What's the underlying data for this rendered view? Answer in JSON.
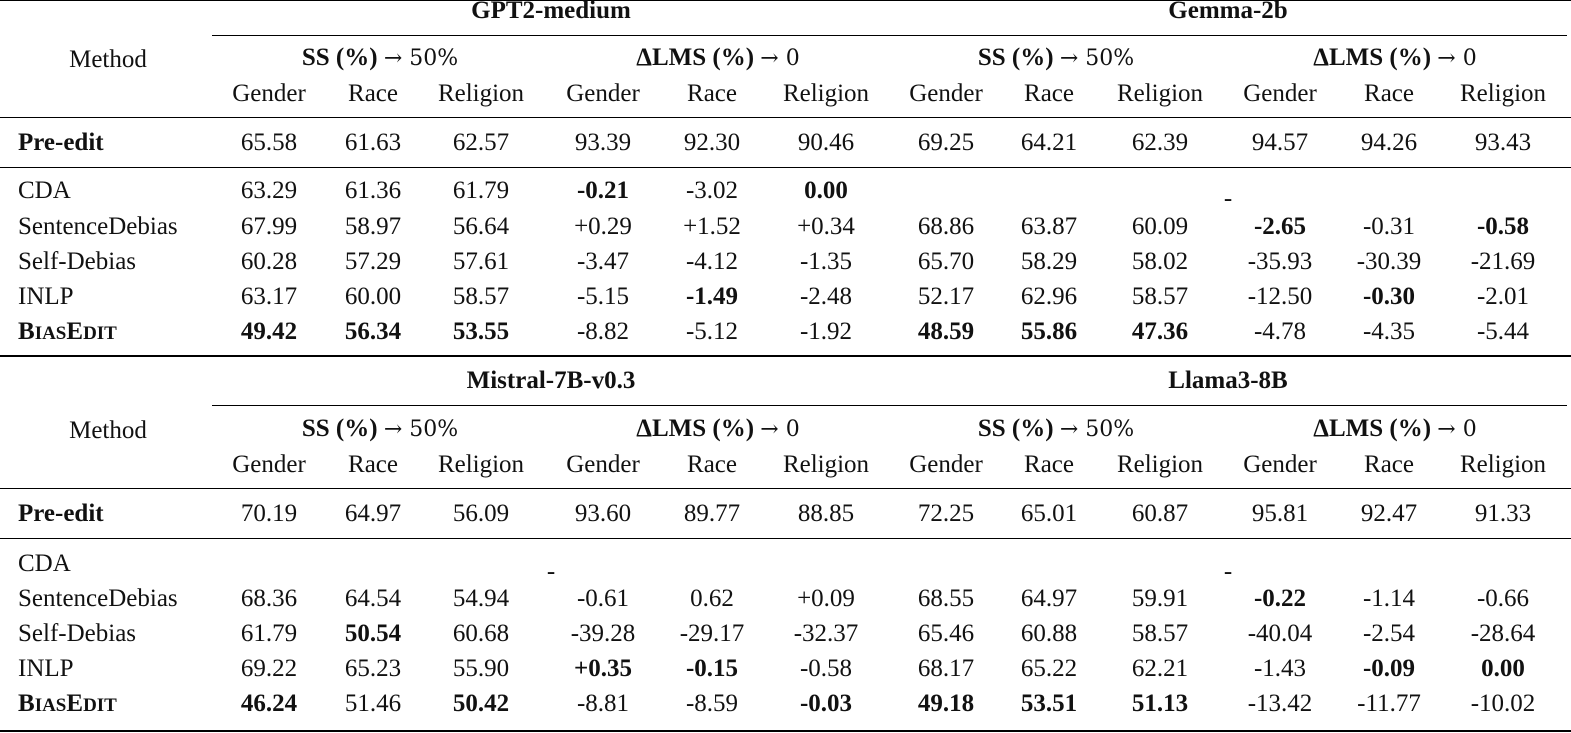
{
  "tables": [
    {
      "models": [
        "GPT2-medium",
        "Gemma-2b"
      ],
      "method_header": "Method",
      "ss_header": {
        "bold": "SS (%)",
        "rest": "→ 50%"
      },
      "lms_header": {
        "bold": "ΔLMS (%)",
        "rest": "→ 0"
      },
      "columns": [
        "Gender",
        "Race",
        "Religion",
        "Gender",
        "Race",
        "Religion",
        "Gender",
        "Race",
        "Religion",
        "Gender",
        "Race",
        "Religion"
      ],
      "pre_edit": {
        "label": "Pre-edit",
        "values": [
          "65.58",
          "61.63",
          "62.57",
          "93.39",
          "92.30",
          "90.46",
          "69.25",
          "64.21",
          "62.39",
          "94.57",
          "94.26",
          "93.43"
        ]
      },
      "rows": [
        {
          "label": "CDA",
          "values": [
            "63.29",
            "61.36",
            "61.79",
            "-0.21",
            "-3.02",
            "0.00",
            "",
            "",
            "",
            "",
            "",
            ""
          ],
          "bold": [
            false,
            false,
            false,
            true,
            false,
            true,
            false,
            false,
            false,
            false,
            false,
            false
          ],
          "dash": "-"
        },
        {
          "label": "SentenceDebias",
          "values": [
            "67.99",
            "58.97",
            "56.64",
            "+0.29",
            "+1.52",
            "+0.34",
            "68.86",
            "63.87",
            "60.09",
            "-2.65",
            "-0.31",
            "-0.58"
          ],
          "bold": [
            false,
            false,
            false,
            false,
            false,
            false,
            false,
            false,
            false,
            true,
            false,
            true
          ]
        },
        {
          "label": "Self-Debias",
          "values": [
            "60.28",
            "57.29",
            "57.61",
            "-3.47",
            "-4.12",
            "-1.35",
            "65.70",
            "58.29",
            "58.02",
            "-35.93",
            "-30.39",
            "-21.69"
          ],
          "bold": [
            false,
            false,
            false,
            false,
            false,
            false,
            false,
            false,
            false,
            false,
            false,
            false
          ]
        },
        {
          "label": "INLP",
          "values": [
            "63.17",
            "60.00",
            "58.57",
            "-5.15",
            "-1.49",
            "-2.48",
            "52.17",
            "62.96",
            "58.57",
            "-12.50",
            "-0.30",
            "-2.01"
          ],
          "bold": [
            false,
            false,
            false,
            false,
            true,
            false,
            false,
            false,
            false,
            false,
            true,
            false
          ]
        },
        {
          "label": "BiasEdit",
          "values": [
            "49.42",
            "56.34",
            "53.55",
            "-8.82",
            "-5.12",
            "-1.92",
            "48.59",
            "55.86",
            "47.36",
            "-4.78",
            "-4.35",
            "-5.44"
          ],
          "bold": [
            true,
            true,
            true,
            false,
            false,
            false,
            true,
            true,
            true,
            false,
            false,
            false
          ]
        }
      ]
    },
    {
      "models": [
        "Mistral-7B-v0.3",
        "Llama3-8B"
      ],
      "method_header": "Method",
      "ss_header": {
        "bold": "SS (%)",
        "rest": "→ 50%"
      },
      "lms_header": {
        "bold": "ΔLMS (%)",
        "rest": "→ 0"
      },
      "columns": [
        "Gender",
        "Race",
        "Religion",
        "Gender",
        "Race",
        "Religion",
        "Gender",
        "Race",
        "Religion",
        "Gender",
        "Race",
        "Religion"
      ],
      "pre_edit": {
        "label": "Pre-edit",
        "values": [
          "70.19",
          "64.97",
          "56.09",
          "93.60",
          "89.77",
          "88.85",
          "72.25",
          "65.01",
          "60.87",
          "95.81",
          "92.47",
          "91.33"
        ]
      },
      "rows": [
        {
          "label": "CDA",
          "values": [
            "",
            "",
            "",
            "",
            "",
            "",
            "",
            "",
            "",
            "",
            "",
            ""
          ],
          "bold": [
            false,
            false,
            false,
            false,
            false,
            false,
            false,
            false,
            false,
            false,
            false,
            false
          ],
          "dash": "-",
          "dash2": "-"
        },
        {
          "label": "SentenceDebias",
          "values": [
            "68.36",
            "64.54",
            "54.94",
            "-0.61",
            "0.62",
            "+0.09",
            "68.55",
            "64.97",
            "59.91",
            "-0.22",
            "-1.14",
            "-0.66"
          ],
          "bold": [
            false,
            false,
            false,
            false,
            false,
            false,
            false,
            false,
            false,
            true,
            false,
            false
          ]
        },
        {
          "label": "Self-Debias",
          "values": [
            "61.79",
            "50.54",
            "60.68",
            "-39.28",
            "-29.17",
            "-32.37",
            "65.46",
            "60.88",
            "58.57",
            "-40.04",
            "-2.54",
            "-28.64"
          ],
          "bold": [
            false,
            true,
            false,
            false,
            false,
            false,
            false,
            false,
            false,
            false,
            false,
            false
          ]
        },
        {
          "label": "INLP",
          "values": [
            "69.22",
            "65.23",
            "55.90",
            "+0.35",
            "-0.15",
            "-0.58",
            "68.17",
            "65.22",
            "62.21",
            "-1.43",
            "-0.09",
            "0.00"
          ],
          "bold": [
            false,
            false,
            false,
            true,
            true,
            false,
            false,
            false,
            false,
            false,
            true,
            true
          ]
        },
        {
          "label": "BiasEdit",
          "values": [
            "46.24",
            "51.46",
            "50.42",
            "-8.81",
            "-8.59",
            "-0.03",
            "49.18",
            "53.51",
            "51.13",
            "-13.42",
            "-11.77",
            "-10.02"
          ],
          "bold": [
            true,
            false,
            true,
            false,
            false,
            true,
            true,
            true,
            true,
            false,
            false,
            false
          ]
        }
      ]
    }
  ]
}
